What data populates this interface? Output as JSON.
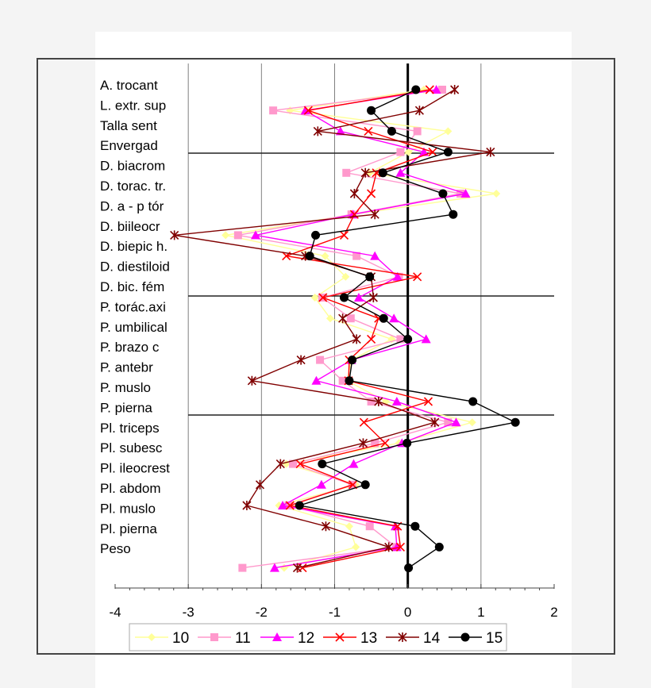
{
  "chart_data": {
    "type": "line",
    "orientation": "horizontal",
    "categories": [
      "A. trocant",
      "L. extr. sup",
      "Talla sent",
      "Envergad",
      "D. biacrom",
      "D. torac. tr.",
      "D. a - p tór",
      "D. biileocr",
      "D. biepic h.",
      "D. diestiloid",
      "D. bic. fém",
      "P. torác.axi",
      "P. umbilical",
      "P. brazo c",
      "P. antebr",
      "P. muslo",
      "P. pierna",
      "Pl. triceps",
      "Pl. subesc",
      "Pl. ileocrest",
      "Pl. abdom",
      "Pl. muslo",
      "Pl. pierna",
      "Peso"
    ],
    "xlim": [
      -4,
      2
    ],
    "xticks": [
      "-4",
      "-3",
      "-2",
      "-1",
      "0",
      "1",
      "2"
    ],
    "grid": "vertical",
    "legend_position": "bottom",
    "series": [
      {
        "name": "10",
        "color": "#ffff99",
        "marker": "diamond",
        "values": [
          0.22,
          -1.61,
          0.55,
          0.01,
          -0.52,
          1.21,
          -0.75,
          -2.49,
          -1.13,
          -0.85,
          -1.27,
          -1.06,
          -0.22,
          -0.77,
          -0.83,
          -0.3,
          0.88,
          -0.12,
          -1.66,
          -0.71,
          -1.76,
          -0.8,
          -0.71,
          -1.69
        ]
      },
      {
        "name": "11",
        "color": "#ff99cc",
        "marker": "square",
        "values": [
          0.47,
          -1.84,
          0.13,
          -0.1,
          -0.84,
          0.72,
          -0.77,
          -2.32,
          -0.7,
          -0.12,
          -1.17,
          -0.78,
          -0.1,
          -1.2,
          -0.89,
          -0.5,
          0.55,
          -0.45,
          -1.57,
          -0.76,
          -1.63,
          -0.52,
          -0.16,
          -2.26
        ]
      },
      {
        "name": "12",
        "color": "#ff00ff",
        "marker": "triangle",
        "values": [
          0.39,
          -1.4,
          -0.92,
          0.22,
          -0.1,
          0.79,
          -0.75,
          -2.08,
          -0.45,
          -0.14,
          -0.67,
          -0.19,
          0.25,
          -0.77,
          -1.25,
          -0.15,
          0.66,
          -0.08,
          -0.74,
          -1.18,
          -1.71,
          -0.17,
          -0.15,
          -1.82
        ]
      },
      {
        "name": "13",
        "color": "#ff0000",
        "marker": "x",
        "values": [
          0.3,
          -1.36,
          -0.54,
          0.34,
          -0.43,
          -0.5,
          -0.73,
          -0.87,
          -1.66,
          0.13,
          -1.16,
          -0.4,
          -0.5,
          -0.8,
          -0.81,
          0.28,
          -0.6,
          -0.31,
          -1.47,
          -0.75,
          -1.61,
          -0.14,
          -0.1,
          -1.44
        ]
      },
      {
        "name": "14",
        "color": "#800000",
        "marker": "star",
        "values": [
          0.64,
          0.16,
          -1.23,
          1.13,
          -0.58,
          -0.73,
          -0.45,
          -3.19,
          -1.4,
          -0.5,
          -0.47,
          -0.89,
          -0.7,
          -1.46,
          -2.13,
          -0.4,
          0.37,
          -0.61,
          -1.74,
          -2.02,
          -2.2,
          -1.12,
          -0.26,
          -1.51
        ]
      },
      {
        "name": "15",
        "color": "#000000",
        "marker": "circle",
        "values": [
          0.11,
          -0.5,
          -0.22,
          0.55,
          -0.34,
          0.48,
          0.62,
          -1.26,
          -1.34,
          -0.52,
          -0.87,
          -0.33,
          0.0,
          -0.76,
          -0.8,
          0.89,
          1.47,
          -0.01,
          -1.17,
          -0.58,
          -1.48,
          0.1,
          0.43,
          0.01
        ]
      }
    ]
  }
}
